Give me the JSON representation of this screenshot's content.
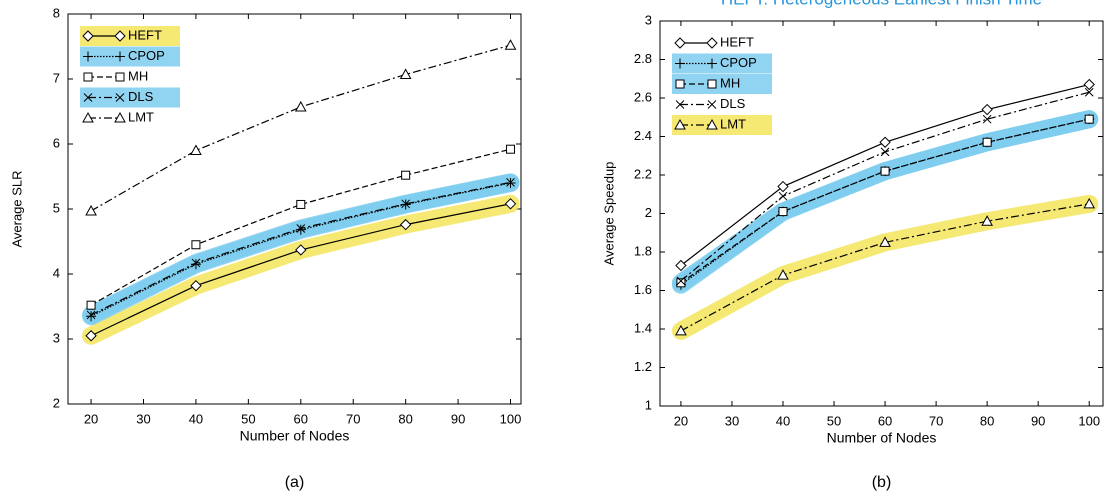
{
  "chart_data": [
    {
      "type": "line",
      "caption": "(a)",
      "xlabel": "Number of Nodes",
      "ylabel": "Average SLR",
      "x": [
        20,
        40,
        60,
        80,
        100
      ],
      "xlim": [
        15.6,
        102
      ],
      "xticks": [
        20,
        30,
        40,
        50,
        60,
        70,
        80,
        90,
        100
      ],
      "ylim": [
        2,
        8
      ],
      "yticks": [
        2,
        3,
        4,
        5,
        6,
        7,
        8
      ],
      "legend": "upper left",
      "series": [
        {
          "name": "HEFT",
          "color": "#000000",
          "highlight": "#f3e45a",
          "marker": "diamond",
          "line_style": "solid",
          "values": [
            3.05,
            3.82,
            4.37,
            4.76,
            5.08
          ]
        },
        {
          "name": "CPOP",
          "color": "#000000",
          "highlight": "#7ccdee",
          "marker": "plus",
          "line_style": "dotted",
          "values": [
            3.35,
            4.15,
            4.68,
            5.07,
            5.4
          ]
        },
        {
          "name": "MH",
          "color": "#000000",
          "highlight": null,
          "marker": "square",
          "line_style": "dashed",
          "values": [
            3.52,
            4.45,
            5.07,
            5.52,
            5.92
          ]
        },
        {
          "name": "DLS",
          "color": "#000000",
          "highlight": "#7ccdee",
          "marker": "x",
          "line_style": "dashdot",
          "values": [
            3.37,
            4.17,
            4.7,
            5.08,
            5.41
          ]
        },
        {
          "name": "LMT",
          "color": "#000000",
          "highlight": null,
          "marker": "triangle",
          "line_style": "dashdot",
          "values": [
            4.97,
            5.9,
            6.57,
            7.07,
            7.52
          ]
        }
      ]
    },
    {
      "type": "line",
      "title": "HEFT: Heterogeneous Earliest Finish Time",
      "caption": "(b)",
      "xlabel": "Number of Nodes",
      "ylabel": "Average Speedup",
      "x": [
        20,
        40,
        60,
        80,
        100
      ],
      "xlim": [
        15.9,
        102.7
      ],
      "xticks": [
        20,
        30,
        40,
        50,
        60,
        70,
        80,
        90,
        100
      ],
      "ylim": [
        1,
        3
      ],
      "yticks": [
        1,
        1.2,
        1.4,
        1.6,
        1.8,
        2,
        2.2,
        2.4,
        2.6,
        2.8,
        3
      ],
      "legend": "upper left",
      "series": [
        {
          "name": "HEFT",
          "color": "#000000",
          "highlight": null,
          "marker": "diamond",
          "line_style": "solid",
          "values": [
            1.73,
            2.14,
            2.37,
            2.54,
            2.67
          ]
        },
        {
          "name": "CPOP",
          "color": "#000000",
          "highlight": "#7ccdee",
          "marker": "plus",
          "line_style": "dotted",
          "values": [
            1.63,
            2.01,
            2.22,
            2.37,
            2.49
          ]
        },
        {
          "name": "MH",
          "color": "#000000",
          "highlight": "#7ccdee",
          "marker": "square",
          "line_style": "dashed",
          "values": [
            1.64,
            2.01,
            2.22,
            2.37,
            2.49
          ]
        },
        {
          "name": "DLS",
          "color": "#000000",
          "highlight": null,
          "marker": "x",
          "line_style": "dashdot",
          "values": [
            1.65,
            2.09,
            2.32,
            2.49,
            2.63
          ]
        },
        {
          "name": "LMT",
          "color": "#000000",
          "highlight": "#f3e45a",
          "marker": "triangle",
          "line_style": "dashdot",
          "values": [
            1.39,
            1.68,
            1.85,
            1.96,
            2.05
          ]
        }
      ]
    }
  ]
}
